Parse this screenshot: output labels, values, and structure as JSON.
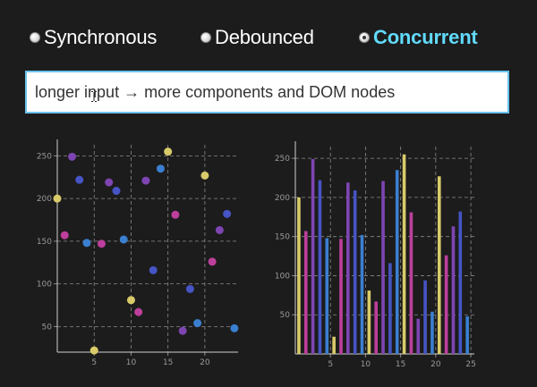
{
  "modes": [
    {
      "label": "Synchronous",
      "checked": false
    },
    {
      "label": "Debounced",
      "checked": false
    },
    {
      "label": "Concurrent",
      "checked": true
    }
  ],
  "search": {
    "value": "longer input → more components and DOM nodes",
    "placeholder": ""
  },
  "colors": {
    "accent": "#61dafb",
    "background": "#1c1c1c",
    "input_border": "#6ac2ee",
    "grid": "#8a8a8a",
    "palette": [
      "#d9cb6a",
      "#bd3f9c",
      "#7e45b2",
      "#4654c4",
      "#3a7fd0"
    ]
  },
  "chart_data": [
    {
      "type": "scatter",
      "x_ticks": [
        5,
        10,
        15,
        20
      ],
      "y_ticks": [
        50,
        100,
        150,
        200,
        250
      ],
      "xlim": [
        0,
        24.5
      ],
      "ylim": [
        20,
        263
      ],
      "grid": true,
      "points": [
        {
          "x": 0,
          "y": 200,
          "color": "#d9cb6a"
        },
        {
          "x": 1,
          "y": 157,
          "color": "#bd3f9c"
        },
        {
          "x": 2,
          "y": 249,
          "color": "#7e45b2"
        },
        {
          "x": 3,
          "y": 222,
          "color": "#4654c4"
        },
        {
          "x": 4,
          "y": 148,
          "color": "#3a7fd0"
        },
        {
          "x": 5,
          "y": 22,
          "color": "#d9cb6a"
        },
        {
          "x": 6,
          "y": 147,
          "color": "#bd3f9c"
        },
        {
          "x": 7,
          "y": 219,
          "color": "#7e45b2"
        },
        {
          "x": 8,
          "y": 209,
          "color": "#4654c4"
        },
        {
          "x": 9,
          "y": 152,
          "color": "#3a7fd0"
        },
        {
          "x": 10,
          "y": 81,
          "color": "#d9cb6a"
        },
        {
          "x": 11,
          "y": 67,
          "color": "#bd3f9c"
        },
        {
          "x": 12,
          "y": 221,
          "color": "#7e45b2"
        },
        {
          "x": 13,
          "y": 116,
          "color": "#4654c4"
        },
        {
          "x": 14,
          "y": 235,
          "color": "#3a7fd0"
        },
        {
          "x": 15,
          "y": 255,
          "color": "#d9cb6a"
        },
        {
          "x": 16,
          "y": 181,
          "color": "#bd3f9c"
        },
        {
          "x": 17,
          "y": 45,
          "color": "#7e45b2"
        },
        {
          "x": 18,
          "y": 94,
          "color": "#4654c4"
        },
        {
          "x": 19,
          "y": 54,
          "color": "#3a7fd0"
        },
        {
          "x": 20,
          "y": 227,
          "color": "#d9cb6a"
        },
        {
          "x": 21,
          "y": 126,
          "color": "#bd3f9c"
        },
        {
          "x": 22,
          "y": 163,
          "color": "#7e45b2"
        },
        {
          "x": 23,
          "y": 182,
          "color": "#4654c4"
        },
        {
          "x": 24,
          "y": 48,
          "color": "#3a7fd0"
        }
      ]
    },
    {
      "type": "bar",
      "x_ticks": [
        5,
        10,
        15,
        20,
        25
      ],
      "y_ticks": [
        50,
        100,
        150,
        200,
        250
      ],
      "xlim": [
        0,
        25.5
      ],
      "ylim": [
        0,
        265
      ],
      "grid": true,
      "bars": [
        {
          "x": 0,
          "value": 200,
          "color": "#d9cb6a"
        },
        {
          "x": 1,
          "value": 157,
          "color": "#bd3f9c"
        },
        {
          "x": 2,
          "value": 249,
          "color": "#7e45b2"
        },
        {
          "x": 3,
          "value": 222,
          "color": "#4654c4"
        },
        {
          "x": 4,
          "value": 148,
          "color": "#3a7fd0"
        },
        {
          "x": 5,
          "value": 22,
          "color": "#d9cb6a"
        },
        {
          "x": 6,
          "value": 147,
          "color": "#bd3f9c"
        },
        {
          "x": 7,
          "value": 219,
          "color": "#7e45b2"
        },
        {
          "x": 8,
          "value": 209,
          "color": "#4654c4"
        },
        {
          "x": 9,
          "value": 152,
          "color": "#3a7fd0"
        },
        {
          "x": 10,
          "value": 81,
          "color": "#d9cb6a"
        },
        {
          "x": 11,
          "value": 67,
          "color": "#bd3f9c"
        },
        {
          "x": 12,
          "value": 221,
          "color": "#7e45b2"
        },
        {
          "x": 13,
          "value": 116,
          "color": "#4654c4"
        },
        {
          "x": 14,
          "value": 235,
          "color": "#3a7fd0"
        },
        {
          "x": 15,
          "value": 255,
          "color": "#d9cb6a"
        },
        {
          "x": 16,
          "value": 181,
          "color": "#bd3f9c"
        },
        {
          "x": 17,
          "value": 45,
          "color": "#7e45b2"
        },
        {
          "x": 18,
          "value": 94,
          "color": "#4654c4"
        },
        {
          "x": 19,
          "value": 54,
          "color": "#3a7fd0"
        },
        {
          "x": 20,
          "value": 227,
          "color": "#d9cb6a"
        },
        {
          "x": 21,
          "value": 126,
          "color": "#bd3f9c"
        },
        {
          "x": 22,
          "value": 163,
          "color": "#7e45b2"
        },
        {
          "x": 23,
          "value": 182,
          "color": "#4654c4"
        },
        {
          "x": 24,
          "value": 48,
          "color": "#3a7fd0"
        }
      ]
    }
  ]
}
